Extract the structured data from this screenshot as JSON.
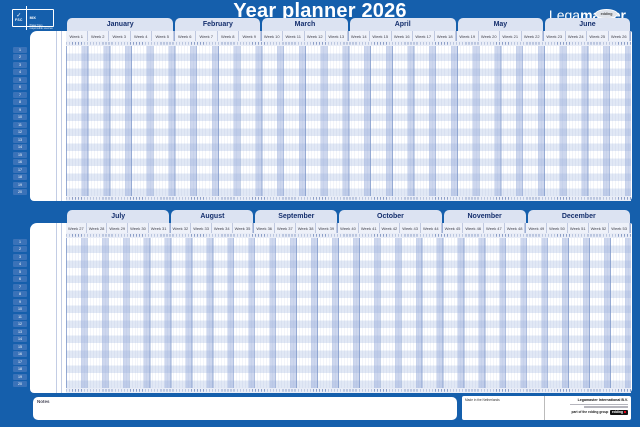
{
  "title": "Year planner 2026",
  "brand": {
    "name_light": "Lega",
    "name_bold": "master",
    "badge": "edding"
  },
  "fsc": {
    "mark": "✓",
    "code": "FSC",
    "mix": "MIX",
    "line": "Paper from responsible sources"
  },
  "notes_label": "Notes",
  "footer": {
    "made_in": "Made in the Netherlands",
    "company": "Legamaster International B.V.",
    "group_text": "part of the edding group",
    "group_brand": "edding"
  },
  "panels": [
    {
      "name": "first-half",
      "row_numbers": [
        1,
        2,
        3,
        4,
        5,
        6,
        7,
        8,
        9,
        10,
        11,
        12,
        13,
        14,
        15,
        16,
        17,
        18,
        19,
        20
      ],
      "months": [
        {
          "name": "January",
          "weeks": [
            "Week 1",
            "Week 2",
            "Week 3",
            "Week 4",
            "Week 5"
          ]
        },
        {
          "name": "February",
          "weeks": [
            "Week 6",
            "Week 7",
            "Week 8",
            "Week 9"
          ]
        },
        {
          "name": "March",
          "weeks": [
            "Week 10",
            "Week 11",
            "Week 12",
            "Week 13"
          ]
        },
        {
          "name": "April",
          "weeks": [
            "Week 14",
            "Week 15",
            "Week 16",
            "Week 17",
            "Week 18"
          ]
        },
        {
          "name": "May",
          "weeks": [
            "Week 19",
            "Week 20",
            "Week 21",
            "Week 22"
          ]
        },
        {
          "name": "June",
          "weeks": [
            "Week 23",
            "Week 24",
            "Week 25",
            "Week 26"
          ]
        }
      ]
    },
    {
      "name": "second-half",
      "row_numbers": [
        1,
        2,
        3,
        4,
        5,
        6,
        7,
        8,
        9,
        10,
        11,
        12,
        13,
        14,
        15,
        16,
        17,
        18,
        19,
        20
      ],
      "months": [
        {
          "name": "July",
          "weeks": [
            "Week 27",
            "Week 28",
            "Week 29",
            "Week 30",
            "Week 31"
          ]
        },
        {
          "name": "August",
          "weeks": [
            "Week 32",
            "Week 33",
            "Week 34",
            "Week 35"
          ]
        },
        {
          "name": "September",
          "weeks": [
            "Week 36",
            "Week 37",
            "Week 38",
            "Week 39"
          ]
        },
        {
          "name": "October",
          "weeks": [
            "Week 40",
            "Week 41",
            "Week 42",
            "Week 43",
            "Week 44"
          ]
        },
        {
          "name": "November",
          "weeks": [
            "Week 45",
            "Week 46",
            "Week 47",
            "Week 48"
          ]
        },
        {
          "name": "December",
          "weeks": [
            "Week 49",
            "Week 50",
            "Week 51",
            "Week 52",
            "Week 53"
          ]
        }
      ]
    }
  ]
}
